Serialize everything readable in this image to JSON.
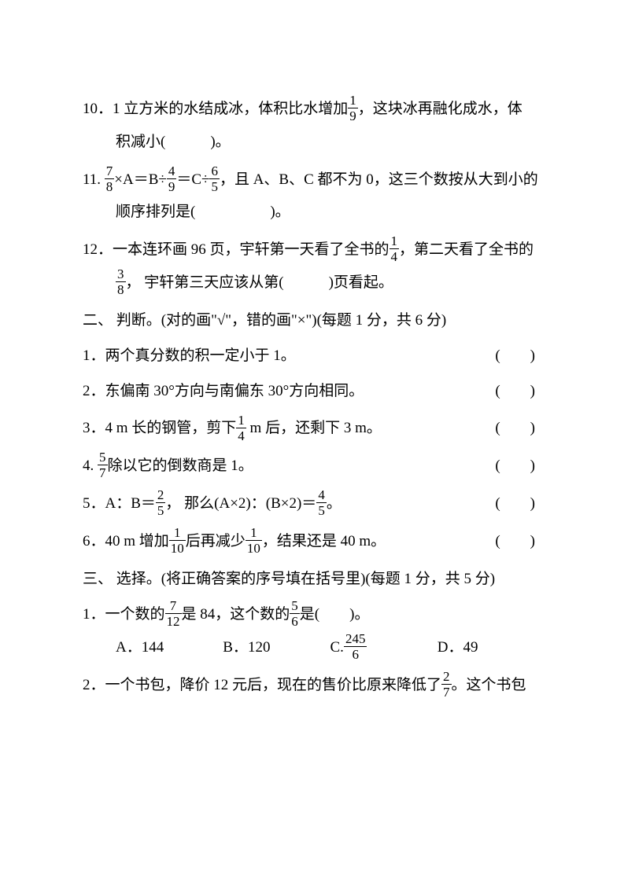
{
  "background_color": "#ffffff",
  "text_color": "#000000",
  "font_family": "SimSun",
  "base_fontsize": 19,
  "q10": {
    "num": "10．",
    "line1_prefix": "1 立方米的水结成冰，体积比水增加",
    "frac1_n": "1",
    "frac1_d": "9",
    "line1_suffix": "，这块冰再融化成水，体",
    "line2": "积减小(　　　)。"
  },
  "q11": {
    "num": "11. ",
    "f1_n": "7",
    "f1_d": "8",
    "seg1": "×A＝B÷",
    "f2_n": "4",
    "f2_d": "9",
    "seg2": "＝C÷",
    "f3_n": "6",
    "f3_d": "5",
    "seg3": "，且 A、B、C 都不为 0，这三个数按从大到小的",
    "line2": "顺序排列是(　　　　　)。"
  },
  "q12": {
    "num": "12．",
    "seg1": "一本连环画 96 页，宇轩第一天看了全书的",
    "f1_n": "1",
    "f1_d": "4",
    "seg2": "，第二天看了全书的",
    "f2_n": "3",
    "f2_d": "8",
    "line2": "， 宇轩第三天应该从第(　　　)页看起。"
  },
  "section2": {
    "title": "二、 判断。(对的画\"√\"，错的画\"×\")(每题 1 分，共 6 分)"
  },
  "j1": {
    "num": "1．",
    "text": "两个真分数的积一定小于 1。",
    "paren": "(　　)"
  },
  "j2": {
    "num": "2．",
    "text": "东偏南 30°方向与南偏东 30°方向相同。",
    "paren": "(　　)"
  },
  "j3": {
    "num": "3．",
    "pre": "4 m 长的钢管，剪下",
    "f_n": "1",
    "f_d": "4",
    "post": " m 后，还剩下 3 m。",
    "paren": "(　　)"
  },
  "j4": {
    "num": "4. ",
    "f_n": "5",
    "f_d": "7",
    "post": "除以它的倒数商是 1。",
    "paren": "(　　)"
  },
  "j5": {
    "num": "5．",
    "pre": "A：B＝",
    "f1_n": "2",
    "f1_d": "5",
    "mid": "， 那么(A×2)：(B×2)＝",
    "f2_n": "4",
    "f2_d": "5",
    "post": "。",
    "paren": "(　　)"
  },
  "j6": {
    "num": "6．",
    "pre": "40 m 增加",
    "f1_n": "1",
    "f1_d": "10",
    "mid": "后再减少",
    "f2_n": "1",
    "f2_d": "10",
    "post": "，结果还是 40 m。",
    "paren": "(　　)"
  },
  "section3": {
    "title": "三、 选择。(将正确答案的序号填在括号里)(每题 1 分，共 5 分)"
  },
  "c1": {
    "num": "1．",
    "pre": "一个数的",
    "f1_n": "7",
    "f1_d": "12",
    "mid": "是 84，这个数的",
    "f2_n": "5",
    "f2_d": "6",
    "post": "是(　　)。",
    "optA_label": "A．",
    "optA_val": "144",
    "optB_label": "B．",
    "optB_val": "120",
    "optC_label": "C.",
    "optC_n": "245",
    "optC_d": "6",
    "optD_label": "D．",
    "optD_val": "49"
  },
  "c2": {
    "num": "2．",
    "pre": "一个书包，降价 12 元后，现在的售价比原来降低了",
    "f_n": "2",
    "f_d": "7",
    "post": "。这个书包"
  }
}
